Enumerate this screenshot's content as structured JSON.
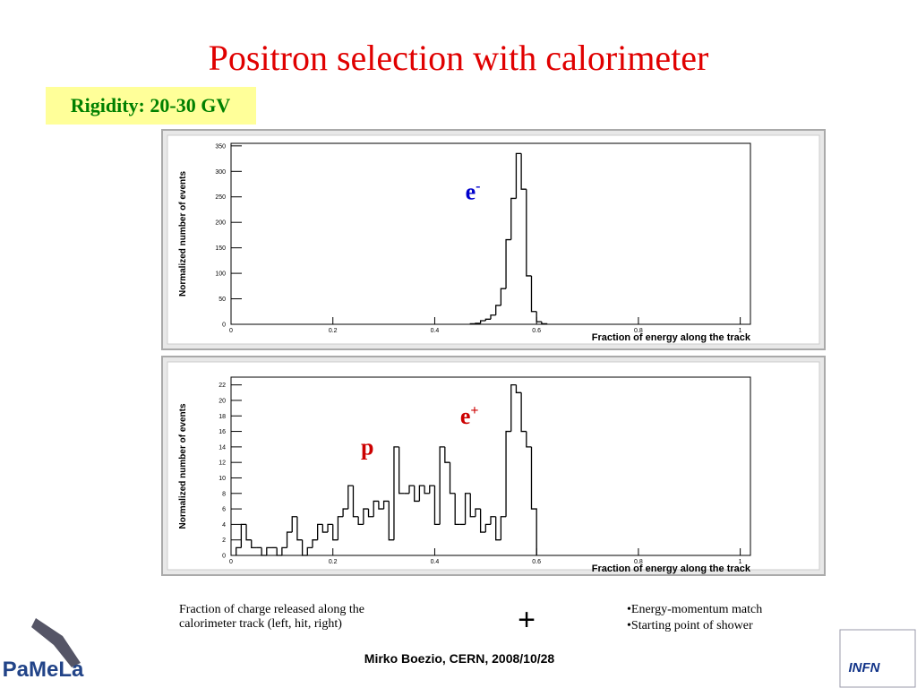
{
  "title": "Positron selection with calorimeter",
  "subtitle": "Rigidity: 20-30 GV",
  "notes_left": [
    "Fraction of charge released along the",
    "calorimeter track (left, hit, right)"
  ],
  "plus": "+",
  "notes_right": [
    "•Energy-momentum match",
    "•Starting point of shower"
  ],
  "footer": "Mirko Boezio, CERN, 2008/10/28",
  "logos": [
    "PaMeLa",
    "INFN"
  ],
  "chart_data": [
    {
      "type": "histogram",
      "ylabel": "Normalized number of events",
      "xlabel": "Fraction of energy along the track",
      "bins": [
        0.47,
        0.48,
        0.49,
        0.5,
        0.51,
        0.52,
        0.53,
        0.54,
        0.55,
        0.56,
        0.57,
        0.58,
        0.59,
        0.6,
        0.61,
        0.62
      ],
      "values": [
        1,
        2,
        7,
        10,
        18,
        37,
        70,
        166,
        247,
        335,
        265,
        95,
        25,
        5,
        1
      ],
      "color": "#000000",
      "xlim": [
        0,
        1.02
      ],
      "ylim": [
        0,
        355
      ],
      "xticks": [
        0,
        0.2,
        0.4,
        0.6,
        0.8,
        1
      ],
      "yticks": [
        0,
        50,
        100,
        150,
        200,
        250,
        300,
        350
      ],
      "annotations": [
        {
          "text": "e",
          "sup": "-",
          "x": 0.46,
          "y": 245,
          "color": "#0000cc"
        }
      ]
    },
    {
      "type": "histogram",
      "ylabel": "Normalized number of events",
      "xlabel": "Fraction of energy along the track",
      "bins": [
        0.01,
        0.02,
        0.03,
        0.04,
        0.05,
        0.06,
        0.07,
        0.08,
        0.09,
        0.1,
        0.11,
        0.12,
        0.13,
        0.14,
        0.15,
        0.16,
        0.17,
        0.18,
        0.19,
        0.2,
        0.21,
        0.22,
        0.23,
        0.24,
        0.25,
        0.26,
        0.27,
        0.28,
        0.29,
        0.3,
        0.31,
        0.32,
        0.33,
        0.34,
        0.35,
        0.36,
        0.37,
        0.38,
        0.39,
        0.4,
        0.41,
        0.42,
        0.43,
        0.44,
        0.45,
        0.46,
        0.47,
        0.48,
        0.49,
        0.5,
        0.51,
        0.52,
        0.53,
        0.54,
        0.55,
        0.56,
        0.57,
        0.58,
        0.59,
        0.6
      ],
      "values": [
        1,
        4,
        2,
        1,
        1,
        0,
        1,
        1,
        0,
        1,
        3,
        5,
        2,
        0,
        1,
        2,
        4,
        3,
        4,
        2,
        5,
        6,
        9,
        5,
        4,
        6,
        5,
        7,
        6,
        7,
        2,
        14,
        8,
        8,
        9,
        7,
        9,
        8,
        9,
        4,
        14,
        12,
        8,
        4,
        4,
        8,
        5,
        6,
        3,
        4,
        5,
        2,
        5,
        16,
        22,
        21,
        16,
        14,
        6
      ],
      "color": "#000000",
      "xlim": [
        0,
        1.02
      ],
      "ylim": [
        0,
        23
      ],
      "xticks": [
        0,
        0.2,
        0.4,
        0.6,
        0.8,
        1
      ],
      "yticks": [
        0,
        2,
        4,
        6,
        8,
        10,
        12,
        14,
        16,
        18,
        20,
        22
      ],
      "annotations": [
        {
          "text": "e",
          "sup": "+",
          "x": 0.45,
          "y": 17,
          "color": "#cc0000"
        },
        {
          "text": "p",
          "x": 0.255,
          "y": 13,
          "color": "#cc0000"
        }
      ]
    }
  ]
}
